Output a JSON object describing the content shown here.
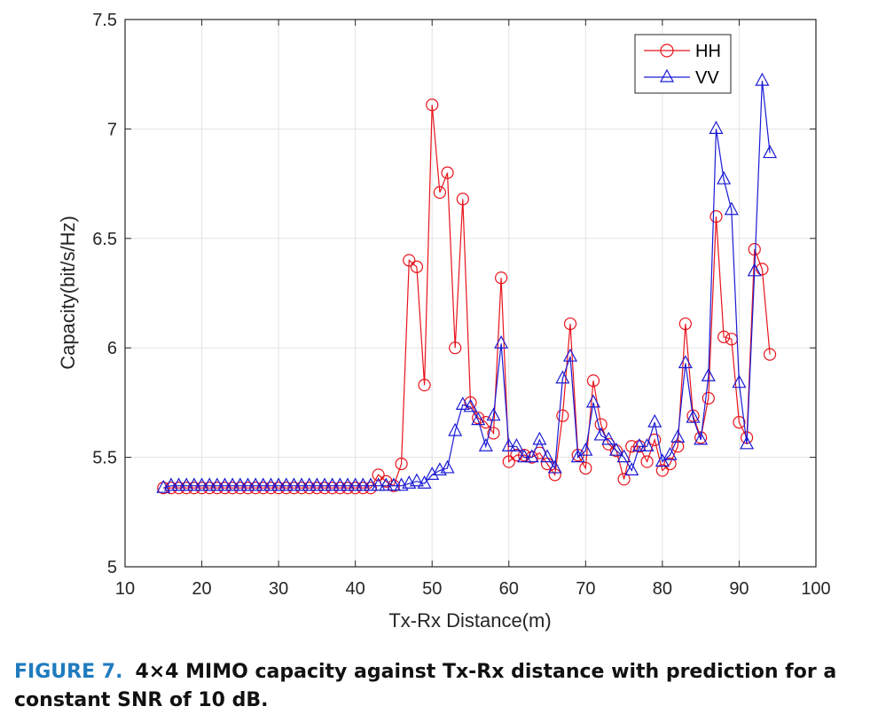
{
  "chart_data": {
    "type": "line",
    "title": "",
    "xlabel": "Tx-Rx Distance(m)",
    "ylabel": "Capacity(bit/s/Hz)",
    "xlim": [
      10,
      100
    ],
    "ylim": [
      5,
      7.5
    ],
    "xticks": [
      10,
      20,
      30,
      40,
      50,
      60,
      70,
      80,
      90,
      100
    ],
    "yticks": [
      5,
      5.5,
      6,
      6.5,
      7,
      7.5
    ],
    "ytick_labels": [
      "5",
      "5.5",
      "6",
      "6.5",
      "7",
      "7.5"
    ],
    "grid": true,
    "legend_position": "top-right",
    "series": [
      {
        "name": "HH",
        "color": "#e8141c",
        "marker": "circle",
        "x": [
          15,
          16,
          17,
          18,
          19,
          20,
          21,
          22,
          23,
          24,
          25,
          26,
          27,
          28,
          29,
          30,
          31,
          32,
          33,
          34,
          35,
          36,
          37,
          38,
          39,
          40,
          41,
          42,
          43,
          44,
          45,
          46,
          47,
          48,
          49,
          50,
          51,
          52,
          53,
          54,
          55,
          56,
          57,
          58,
          59,
          60,
          61,
          62,
          63,
          64,
          65,
          66,
          67,
          68,
          69,
          70,
          71,
          72,
          73,
          74,
          75,
          76,
          77,
          78,
          79,
          80,
          81,
          82,
          83,
          84,
          85,
          86,
          87,
          88,
          89,
          90,
          91,
          92,
          93,
          94
        ],
        "y": [
          5.36,
          5.36,
          5.36,
          5.36,
          5.36,
          5.36,
          5.36,
          5.36,
          5.36,
          5.36,
          5.36,
          5.36,
          5.36,
          5.36,
          5.36,
          5.36,
          5.36,
          5.36,
          5.36,
          5.36,
          5.36,
          5.36,
          5.36,
          5.36,
          5.36,
          5.36,
          5.36,
          5.36,
          5.42,
          5.39,
          5.37,
          5.47,
          6.4,
          6.37,
          5.83,
          7.11,
          6.71,
          6.8,
          6.0,
          6.68,
          5.75,
          5.68,
          5.66,
          5.61,
          6.32,
          5.48,
          5.51,
          5.51,
          5.5,
          5.52,
          5.47,
          5.42,
          5.69,
          6.11,
          5.51,
          5.45,
          5.85,
          5.65,
          5.56,
          5.53,
          5.4,
          5.55,
          5.55,
          5.48,
          5.58,
          5.44,
          5.47,
          5.55,
          6.11,
          5.69,
          5.59,
          5.77,
          6.6,
          6.05,
          6.04,
          5.66,
          5.59,
          6.45,
          6.36,
          5.97
        ]
      },
      {
        "name": "VV",
        "color": "#1a1ad4",
        "marker": "triangle",
        "x": [
          15,
          16,
          17,
          18,
          19,
          20,
          21,
          22,
          23,
          24,
          25,
          26,
          27,
          28,
          29,
          30,
          31,
          32,
          33,
          34,
          35,
          36,
          37,
          38,
          39,
          40,
          41,
          42,
          43,
          44,
          45,
          46,
          47,
          48,
          49,
          50,
          51,
          52,
          53,
          54,
          55,
          56,
          57,
          58,
          59,
          60,
          61,
          62,
          63,
          64,
          65,
          66,
          67,
          68,
          69,
          70,
          71,
          72,
          73,
          74,
          75,
          76,
          77,
          78,
          79,
          80,
          81,
          82,
          83,
          84,
          85,
          86,
          87,
          88,
          89,
          90,
          91,
          92,
          93,
          94
        ],
        "y": [
          5.36,
          5.37,
          5.37,
          5.37,
          5.37,
          5.37,
          5.37,
          5.37,
          5.37,
          5.37,
          5.37,
          5.37,
          5.37,
          5.37,
          5.37,
          5.37,
          5.37,
          5.37,
          5.37,
          5.37,
          5.37,
          5.37,
          5.37,
          5.37,
          5.37,
          5.37,
          5.37,
          5.37,
          5.37,
          5.37,
          5.37,
          5.37,
          5.38,
          5.39,
          5.38,
          5.42,
          5.44,
          5.45,
          5.62,
          5.74,
          5.73,
          5.67,
          5.55,
          5.69,
          6.02,
          5.55,
          5.55,
          5.5,
          5.5,
          5.58,
          5.5,
          5.45,
          5.86,
          5.96,
          5.5,
          5.53,
          5.75,
          5.6,
          5.58,
          5.53,
          5.5,
          5.44,
          5.55,
          5.55,
          5.66,
          5.48,
          5.51,
          5.59,
          5.93,
          5.68,
          5.58,
          5.87,
          7.0,
          6.77,
          6.63,
          5.84,
          5.56,
          6.35,
          7.22,
          6.89
        ]
      }
    ]
  },
  "caption": {
    "figure_label": "FIGURE 7.",
    "text": "4×4 MIMO capacity against Tx-Rx distance with prediction for a constant SNR of 10 dB."
  }
}
